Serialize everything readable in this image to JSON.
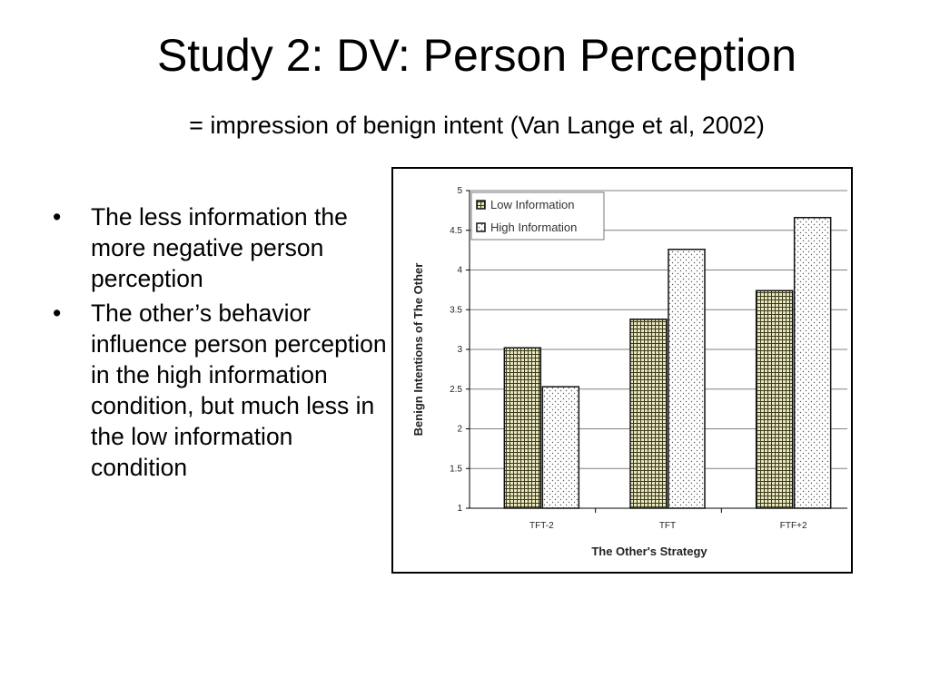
{
  "slide": {
    "title": "Study 2: DV: Person Perception",
    "subtitle": "= impression of benign intent (Van Lange et al, 2002)",
    "bullet_glyph": "•",
    "bullets": [
      "The less information the more negative person perception",
      "The other’s behavior influence person perception in the high information condition, but much less in the low information condition"
    ]
  },
  "chart_data": {
    "type": "bar",
    "title": "",
    "xlabel": "The Other's Strategy",
    "ylabel": "Benign Intentions of The Other",
    "categories": [
      "TFT-2",
      "TFT",
      "FTF+2"
    ],
    "ylim": [
      1,
      5
    ],
    "yticks": [
      1,
      1.5,
      2,
      2.5,
      3,
      3.5,
      4,
      4.5,
      5
    ],
    "ytick_labels": [
      "1",
      "1.5",
      "2",
      "2.5",
      "3",
      "3.5",
      "4",
      "4.5",
      "5"
    ],
    "grid": true,
    "legend_position": "top-left",
    "series": [
      {
        "name": "Low Information",
        "values": [
          3.02,
          3.38,
          3.74
        ],
        "pattern": "grid"
      },
      {
        "name": "High Information",
        "values": [
          2.53,
          4.26,
          4.66
        ],
        "pattern": "dots"
      }
    ],
    "colors": {
      "low_fill": "#e8e6c0",
      "high_fill": "#ffffff",
      "grid_line": "#808080",
      "axis": "#000000"
    }
  }
}
